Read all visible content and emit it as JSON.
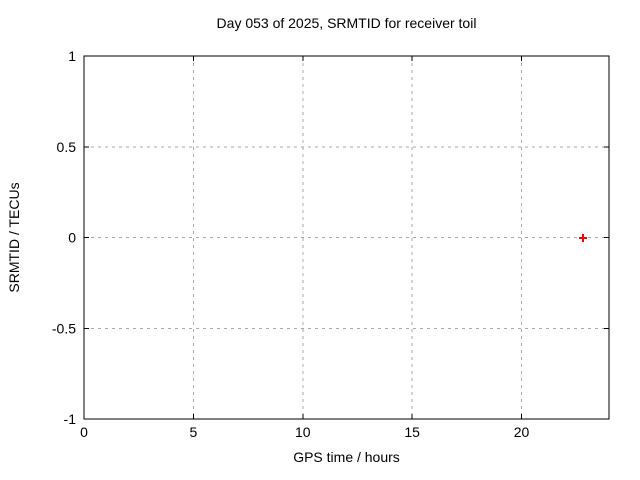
{
  "chart_data": {
    "type": "scatter",
    "title": "Day 053 of 2025, SRMTID for receiver toil",
    "xlabel": "GPS time / hours",
    "ylabel": "SRMTID / TECUs",
    "xlim": [
      0,
      24
    ],
    "ylim": [
      -1,
      1
    ],
    "grid": true,
    "legend": "none",
    "axis_color": "#000000",
    "grid_color": "#a9a9a9",
    "background_color": "#ffffff",
    "x_ticks": [
      {
        "v": 0,
        "label": "0"
      },
      {
        "v": 5,
        "label": "5"
      },
      {
        "v": 10,
        "label": "10"
      },
      {
        "v": 15,
        "label": "15"
      },
      {
        "v": 20,
        "label": "20"
      }
    ],
    "y_ticks": [
      {
        "v": -1,
        "label": "-1"
      },
      {
        "v": -0.5,
        "label": "-0.5"
      },
      {
        "v": 0,
        "label": "0"
      },
      {
        "v": 0.5,
        "label": "0.5"
      },
      {
        "v": 1,
        "label": "1"
      }
    ],
    "series": [
      {
        "name": "SRMTID",
        "marker": "plus",
        "color": "#ff0000",
        "points": [
          {
            "x": 22.8,
            "y": 0
          }
        ]
      }
    ]
  }
}
